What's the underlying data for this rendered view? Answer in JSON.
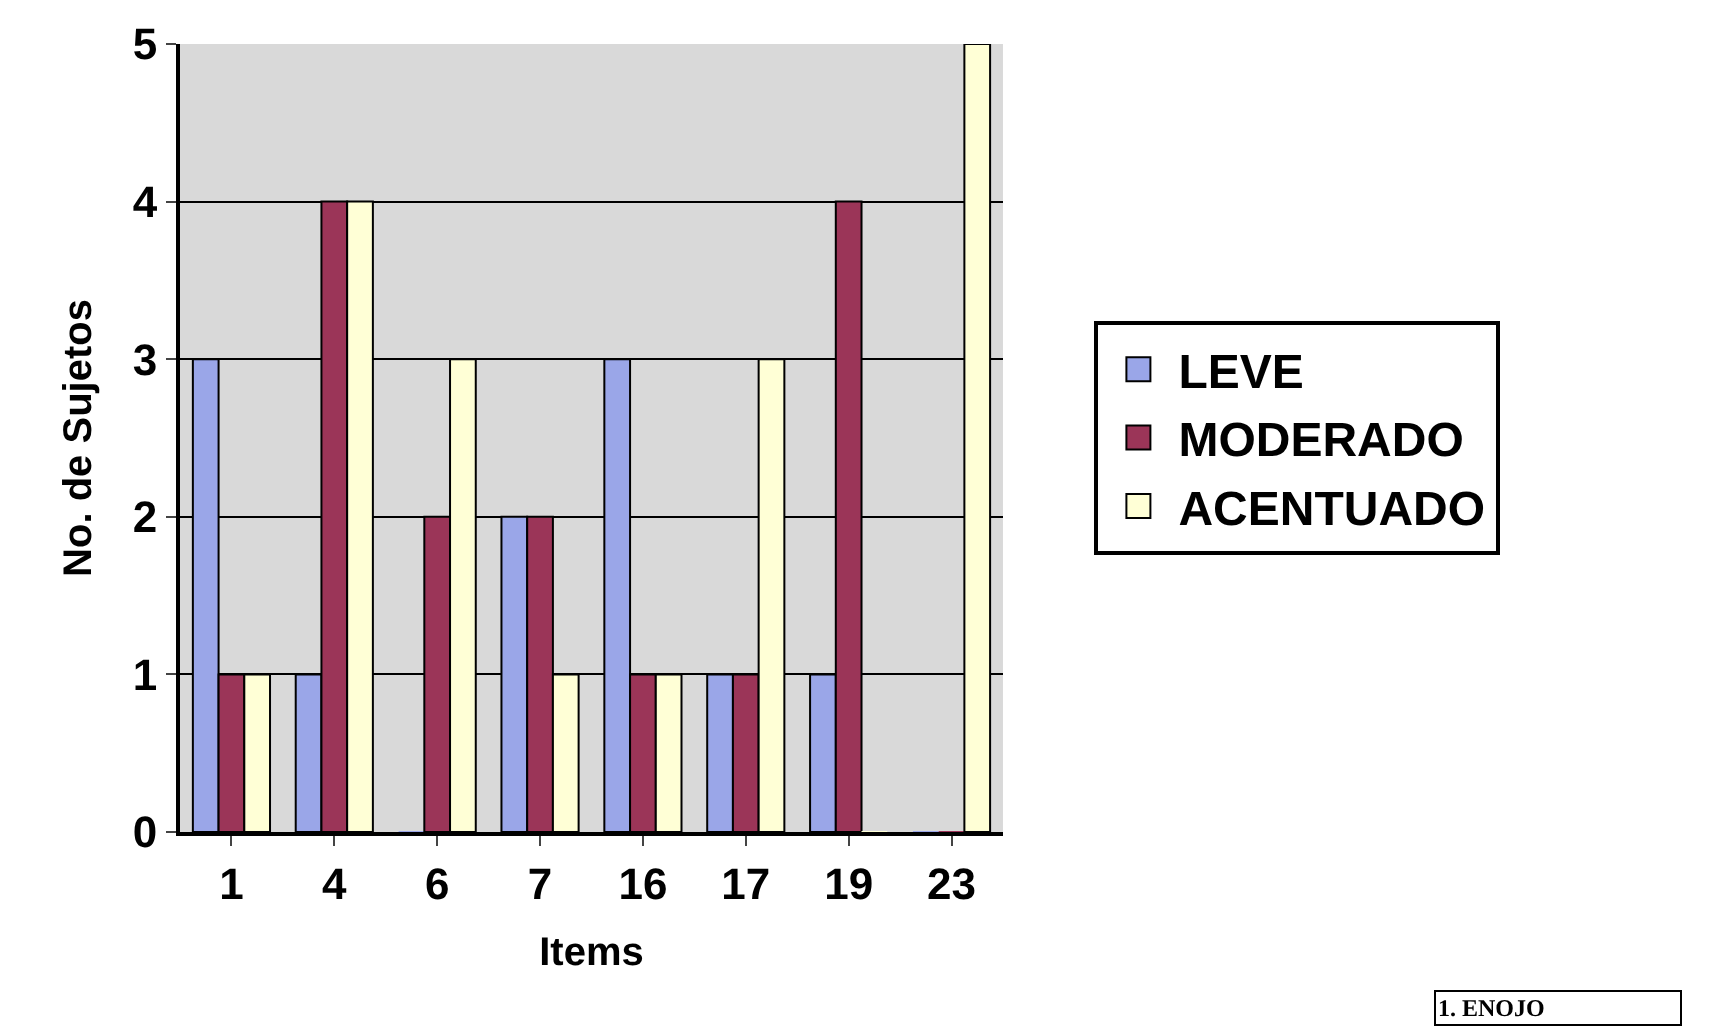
{
  "chart_data": {
    "type": "bar",
    "xlabel": "Items",
    "ylabel": "No. de Sujetos",
    "categories": [
      "1",
      "4",
      "6",
      "7",
      "16",
      "17",
      "19",
      "23"
    ],
    "series": [
      {
        "name": "LEVE",
        "color": "#9aa6e8",
        "values": [
          3,
          1,
          0,
          2,
          3,
          1,
          1,
          0
        ]
      },
      {
        "name": "MODERADO",
        "color": "#9b3558",
        "values": [
          1,
          4,
          2,
          2,
          1,
          1,
          4,
          0
        ]
      },
      {
        "name": "ACENTUADO",
        "color": "#ffffd6",
        "values": [
          1,
          4,
          3,
          1,
          1,
          3,
          0,
          5
        ]
      }
    ],
    "ylim": [
      0,
      5
    ],
    "yticks": [
      0,
      1,
      2,
      3,
      4,
      5
    ],
    "grid": "y",
    "legend": "right",
    "annotations": [
      "1. ENOJO"
    ]
  }
}
